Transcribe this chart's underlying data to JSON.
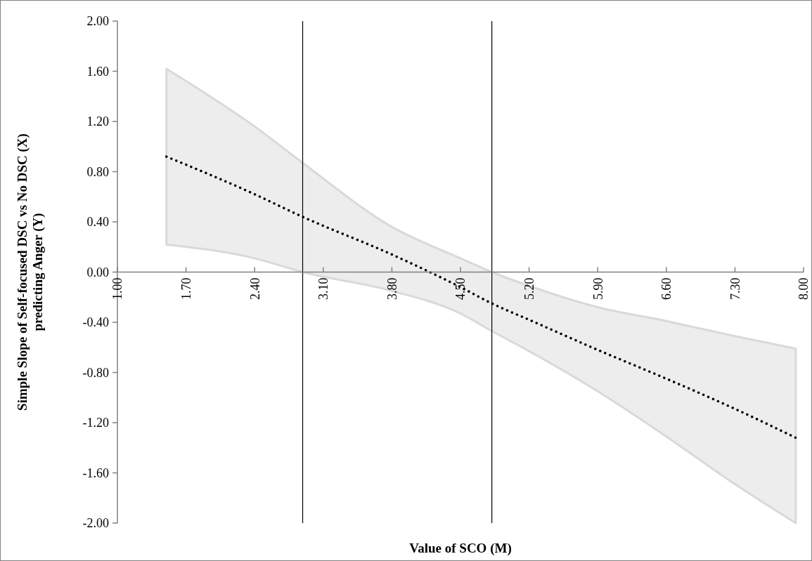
{
  "chart_data": {
    "type": "line",
    "xlabel": "Value of SCO (M)",
    "ylabel": "Simple Slope of Self-focused DSC vs No DSC (X)\npredicting Anger (Y)",
    "x": [
      1.5,
      2.4,
      2.89,
      3.8,
      4.5,
      4.82,
      5.2,
      5.9,
      6.6,
      7.3,
      7.92
    ],
    "series": [
      {
        "color": "#000000",
        "line_style": "dotted",
        "values": [
          0.92,
          0.62,
          0.44,
          0.14,
          -0.12,
          -0.25,
          -0.38,
          -0.62,
          -0.85,
          -1.09,
          -1.32
        ],
        "upper": [
          1.62,
          1.16,
          0.87,
          0.36,
          0.11,
          0.0,
          -0.11,
          -0.28,
          -0.39,
          -0.51,
          -0.61
        ],
        "lower": [
          0.22,
          0.11,
          0.0,
          -0.15,
          -0.33,
          -0.47,
          -0.63,
          -0.95,
          -1.31,
          -1.69,
          -2.0
        ]
      }
    ],
    "xlim": [
      1,
      8
    ],
    "xticks": [
      {
        "value": 1,
        "label": "1.00"
      },
      {
        "value": 1.7,
        "label": "1.70"
      },
      {
        "value": 2.4,
        "label": "2.40"
      },
      {
        "value": 3.1,
        "label": "3.10"
      },
      {
        "value": 3.8,
        "label": "3.80"
      },
      {
        "value": 4.5,
        "label": "4.50"
      },
      {
        "value": 5.2,
        "label": "5.20"
      },
      {
        "value": 5.9,
        "label": "5.90"
      },
      {
        "value": 6.6,
        "label": "6.60"
      },
      {
        "value": 7.3,
        "label": "7.30"
      },
      {
        "value": 8,
        "label": "8.00"
      }
    ],
    "ylim": [
      -2,
      2
    ],
    "yticks": [
      {
        "value": -2,
        "label": "-2.00"
      },
      {
        "value": -1.6,
        "label": "-1.60"
      },
      {
        "value": -1.2,
        "label": "-1.20"
      },
      {
        "value": -0.8,
        "label": "-0.80"
      },
      {
        "value": -0.4,
        "label": "-0.40"
      },
      {
        "value": 0,
        "label": "0.00"
      },
      {
        "value": 0.4,
        "label": "0.40"
      },
      {
        "value": 0.8,
        "label": "0.80"
      },
      {
        "value": 1.2,
        "label": "1.20"
      },
      {
        "value": 1.6,
        "label": "1.60"
      },
      {
        "value": 2,
        "label": "2.00"
      }
    ],
    "ref_lines": [
      {
        "axis": "x",
        "value": 2.89,
        "color": "#000000"
      },
      {
        "axis": "x",
        "value": 4.82,
        "color": "#000000"
      }
    ],
    "grid": false
  }
}
